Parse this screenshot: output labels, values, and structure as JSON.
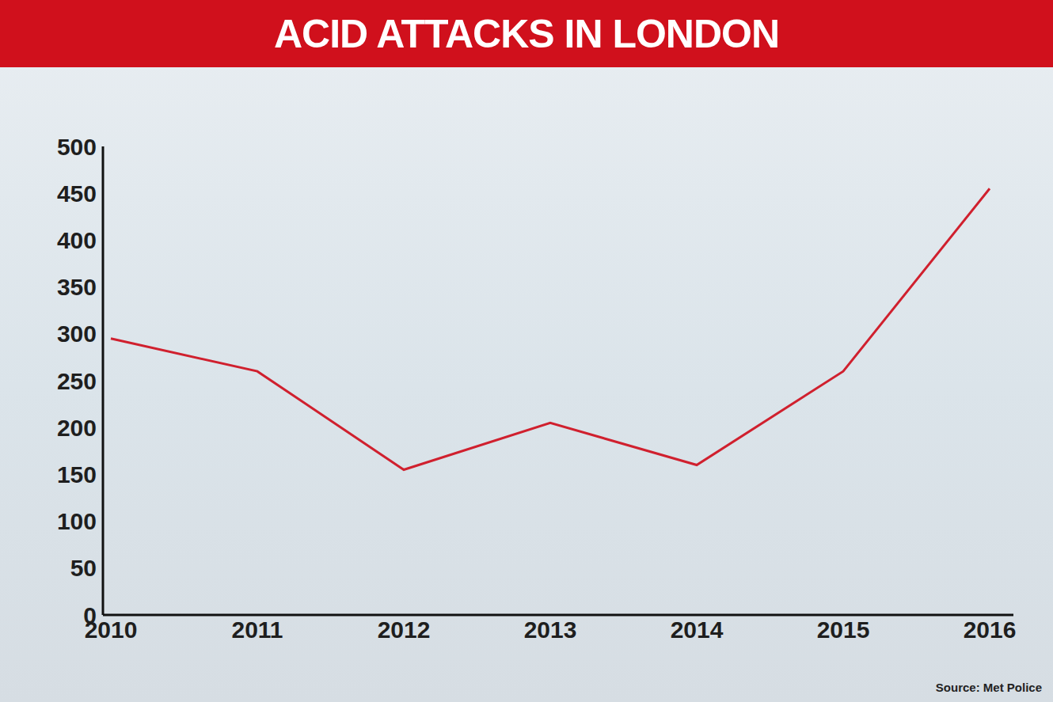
{
  "chart_data": {
    "type": "line",
    "title": "ACID ATTACKS IN LONDON",
    "source": "Source: Met Police",
    "categories": [
      "2010",
      "2011",
      "2012",
      "2013",
      "2014",
      "2015",
      "2016"
    ],
    "values": [
      295,
      260,
      155,
      205,
      160,
      260,
      455
    ],
    "color": "#d0202e",
    "ylim": [
      0,
      500
    ],
    "yticks": [
      0,
      50,
      100,
      150,
      200,
      250,
      300,
      350,
      400,
      450,
      500
    ],
    "grid": false
  }
}
